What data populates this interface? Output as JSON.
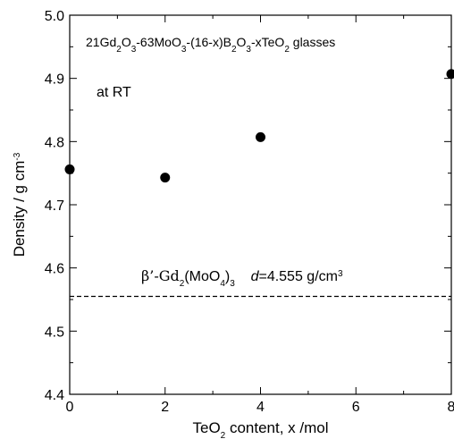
{
  "chart_data": {
    "type": "scatter",
    "xlabel": {
      "pre": "TeO",
      "sub": "2",
      "post": " content, x /mol"
    },
    "ylabel": {
      "main": "Density / g cm",
      "sup": "-3"
    },
    "xlim": [
      0,
      8
    ],
    "ylim": [
      4.4,
      5.0
    ],
    "x_ticks": [
      "0",
      "2",
      "4",
      "6",
      "8"
    ],
    "x_tick_values": [
      0,
      2,
      4,
      6,
      8
    ],
    "x_minor_step": 1,
    "y_ticks": [
      "4.4",
      "4.5",
      "4.6",
      "4.7",
      "4.8",
      "4.9",
      "5.0"
    ],
    "y_tick_values": [
      4.4,
      4.5,
      4.6,
      4.7,
      4.8,
      4.9,
      5.0
    ],
    "y_minor_step": 0.05,
    "grid": false,
    "series": [
      {
        "x": [
          0,
          2,
          4,
          8
        ],
        "y": [
          4.756,
          4.743,
          4.807,
          4.907
        ],
        "marker": "filled-circle",
        "color": "#000000"
      }
    ],
    "reference_line": {
      "y": 4.555,
      "style": "dashed",
      "label": {
        "beta": "β’-Gd",
        "sub1": "2",
        "mid": "(MoO",
        "sub2": "4",
        "close": ")",
        "sub3": "3",
        "d_symbol": "d",
        "value": "=4.555 g/cm",
        "sup": "3"
      }
    },
    "composition_label": {
      "parts": [
        {
          "t": "21Gd"
        },
        {
          "t": "2",
          "sub": true
        },
        {
          "t": "O"
        },
        {
          "t": "3",
          "sub": true
        },
        {
          "t": "-63MoO"
        },
        {
          "t": "3",
          "sub": true
        },
        {
          "t": "-(16-x)B"
        },
        {
          "t": "2",
          "sub": true
        },
        {
          "t": "O"
        },
        {
          "t": "3",
          "sub": true
        },
        {
          "t": "-xTeO"
        },
        {
          "t": "2",
          "sub": true
        },
        {
          "t": "  glasses"
        }
      ]
    },
    "condition_label": "at RT"
  }
}
